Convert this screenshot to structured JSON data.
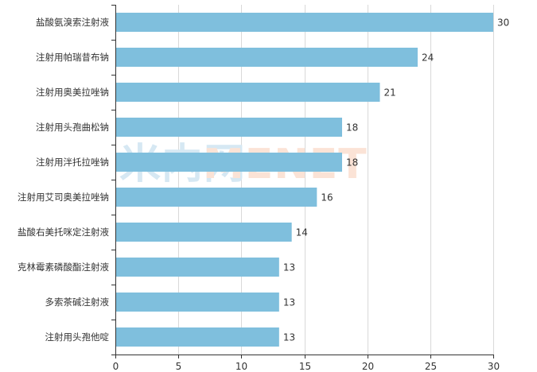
{
  "chart_data": {
    "type": "bar",
    "orientation": "horizontal",
    "categories": [
      "盐酸氨溴索注射液",
      "注射用帕瑞昔布钠",
      "注射用奥美拉唑钠",
      "注射用头孢曲松钠",
      "注射用泮托拉唑钠",
      "注射用艾司奥美拉唑钠",
      "盐酸右美托咪定注射液",
      "克林霉素磷酸酯注射液",
      "多索茶碱注射液",
      "注射用头孢他啶"
    ],
    "values": [
      30,
      24,
      21,
      18,
      18,
      16,
      14,
      13,
      13,
      13
    ],
    "xlim": [
      0,
      30
    ],
    "xticks": [
      0,
      5,
      10,
      15,
      20,
      25,
      30
    ],
    "grid": true,
    "data_labels": true,
    "bar_color": "#7fbfdd"
  },
  "watermark": {
    "text_a": "米内网",
    "text_b": "MENET",
    "color_a": "#d6e8f3",
    "color_b": "#fbe3d6"
  }
}
